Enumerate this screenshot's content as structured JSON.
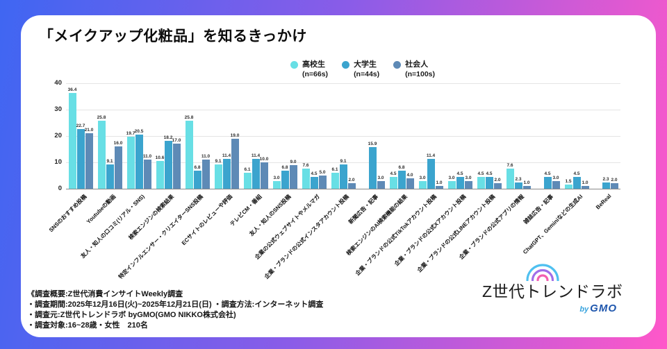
{
  "page": {
    "title": "「メイクアップ化粧品」を知るきっかけ"
  },
  "legend": [
    {
      "label": "高校生",
      "n": "(n=66s)",
      "color": "#68dfe5"
    },
    {
      "label": "大学生",
      "n": "(n=44s)",
      "color": "#3ba4ce"
    },
    {
      "label": "社会人",
      "n": "(n=100s)",
      "color": "#5e8ab6"
    }
  ],
  "chart_data": {
    "type": "bar",
    "title": "「メイクアップ化粧品」を知るきっかけ",
    "xlabel": "",
    "ylabel": "",
    "ylim": [
      0,
      40
    ],
    "yticks": [
      0,
      10,
      20,
      30,
      40
    ],
    "grid": true,
    "legend_position": "top",
    "categories": [
      "SNSのおすすめ投稿",
      "Youtubeの動画",
      "友人・知人の口コミ(リアル・SNS)",
      "検索エンジンの検索結果",
      "特定インフルエンサー・クリエイターSNS投稿",
      "ECサイトのレビューや評価",
      "テレビCM・番組",
      "友人・知人のSNS投稿",
      "企業の公式ウェブサイトやメルマガ",
      "企業・ブランドの公式インスタアカウント投稿",
      "新聞広告・記事",
      "検索エンジンのAI検索機能の結果",
      "企業・ブランドの公式TikTokアカウント投稿",
      "企業・ブランドの公式Xアカウント投稿",
      "企業・ブランドの公式LINEアカウント投稿",
      "企業・ブランドの公式アプリの情報",
      "雑誌広告・記事",
      "ChatGPT、Geminiなどの生成AI",
      "BeReal"
    ],
    "series": [
      {
        "name": "高校生",
        "n": "(n=66s)",
        "color": "#68dfe5",
        "values": [
          36.4,
          25.8,
          19.7,
          10.6,
          25.8,
          9.1,
          6.1,
          3.0,
          7.6,
          6.1,
          0,
          4.5,
          3.0,
          3.0,
          4.5,
          7.6,
          0,
          1.5,
          0
        ]
      },
      {
        "name": "大学生",
        "n": "(n=44s)",
        "color": "#3ba4ce",
        "values": [
          22.7,
          9.1,
          20.5,
          18.2,
          6.8,
          11.4,
          11.4,
          6.8,
          4.5,
          9.1,
          15.9,
          6.8,
          11.4,
          4.5,
          4.5,
          2.3,
          4.5,
          4.5,
          2.3
        ]
      },
      {
        "name": "社会人",
        "n": "(n=100s)",
        "color": "#5e8ab6",
        "values": [
          21.0,
          16.0,
          11.0,
          17.0,
          11.0,
          19.0,
          10.0,
          9.0,
          5.0,
          2.0,
          3.0,
          4.0,
          1.0,
          3.0,
          2.0,
          1.0,
          3.0,
          1.0,
          2.0
        ]
      }
    ]
  },
  "footer": {
    "lines": [
      "《調査概要:Z世代消費インサイトWeekly調査",
      "・調査期間:2025年12月16日(火)~2025年12月21日(日) ・調査方法:インターネット調査",
      "・調査元:Z世代トレンドラボ byGMO(GMO NIKKO株式会社)",
      "・調査対象:16~28歳・女性　210名"
    ]
  },
  "logo": {
    "text": "Z世代トレンドラボ",
    "by": "by",
    "brand": "GMO"
  }
}
